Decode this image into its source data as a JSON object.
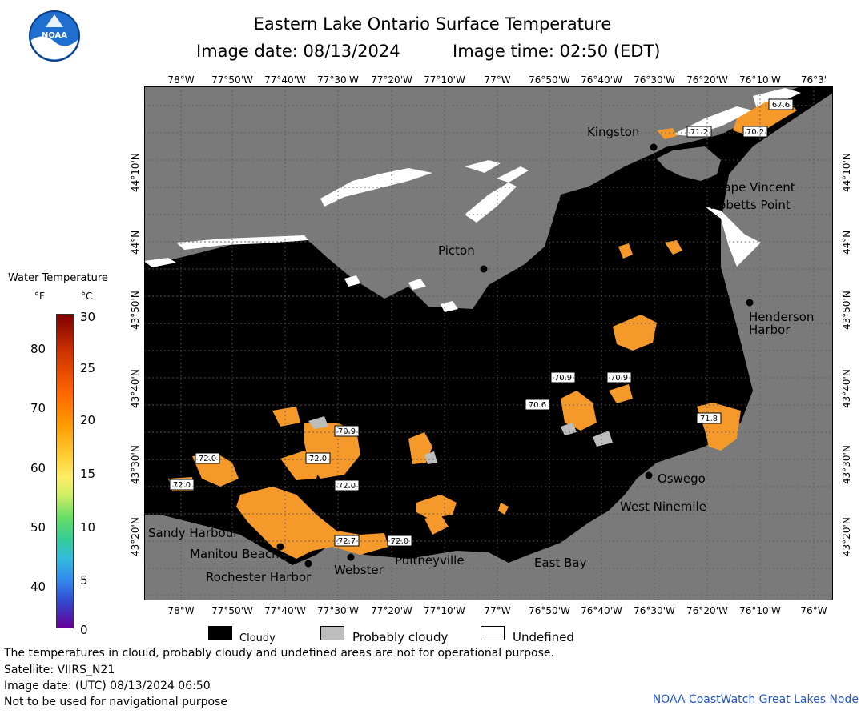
{
  "header": {
    "title": "Eastern Lake Ontario Surface Temperature",
    "image_date": "Image date: 08/13/2024",
    "image_time": "Image time: 02:50 (EDT)"
  },
  "axes": {
    "lon_top": [
      "78°W",
      "77°50'W",
      "77°40'W",
      "77°30'W",
      "77°20'W",
      "77°10'W",
      "77°W",
      "76°50'W",
      "76°40'W",
      "76°30'W",
      "76°20'W",
      "76°10'W",
      "76°3'"
    ],
    "lon_bottom": [
      "78°W",
      "77°50'W",
      "77°40'W",
      "77°30'W",
      "77°20'W",
      "77°10'W",
      "77°W",
      "76°50'W",
      "76°40'W",
      "76°30'W",
      "76°20'W",
      "76°10'W",
      "76°W"
    ],
    "lat": [
      "44°10'N",
      "44°N",
      "43°50'N",
      "43°40'N",
      "43°30'N",
      "43°20'N"
    ]
  },
  "places": [
    {
      "name": "Kingston"
    },
    {
      "name": "Cape Vincent"
    },
    {
      "name": "Tibbetts Point"
    },
    {
      "name": "Picton"
    },
    {
      "name": "Henderson"
    },
    {
      "name": "Harbor"
    },
    {
      "name": "Oswego"
    },
    {
      "name": "West Ninemile"
    },
    {
      "name": "Sandy Harbour"
    },
    {
      "name": "Manitou Beach"
    },
    {
      "name": "Rochester Harbor"
    },
    {
      "name": "Webster"
    },
    {
      "name": "Pultneyville"
    },
    {
      "name": "East Bay"
    }
  ],
  "temperature_labels": [
    "67.6",
    "71.2",
    "70.2",
    "70.9",
    "70.9",
    "70.6",
    "70.9",
    "72.0",
    "72.0",
    "72.0",
    "72.7",
    "72.0",
    "72.0",
    "71.8"
  ],
  "colorbar": {
    "title": "Water Temperature",
    "unit_f": "°F",
    "unit_c": "°C",
    "f_ticks": [
      "80",
      "70",
      "60",
      "50",
      "40"
    ],
    "c_ticks": [
      "30",
      "25",
      "20",
      "15",
      "10",
      "5",
      "0"
    ]
  },
  "legend": {
    "cloudy": "Cloudy",
    "probably_cloudy": "Probably cloudy",
    "undefined": "Undefined"
  },
  "notes": {
    "disclaimer": "The temperatures in clould, probably cloudy and undefined areas are not for operational purpose.",
    "satellite": "Satellite: VIIRS_N21",
    "utc_date": "Image date: (UTC) 08/13/2024  06:50",
    "navigation": "Not to be used for navigational purpose",
    "credit": "NOAA CoastWatch Great Lakes Node"
  },
  "colors": {
    "land": "#7a7a7a",
    "cloud": "#000000",
    "probably_cloudy": "#bdbdbd",
    "undefined": "#ffffff",
    "warm_water": "#f59a2a"
  }
}
